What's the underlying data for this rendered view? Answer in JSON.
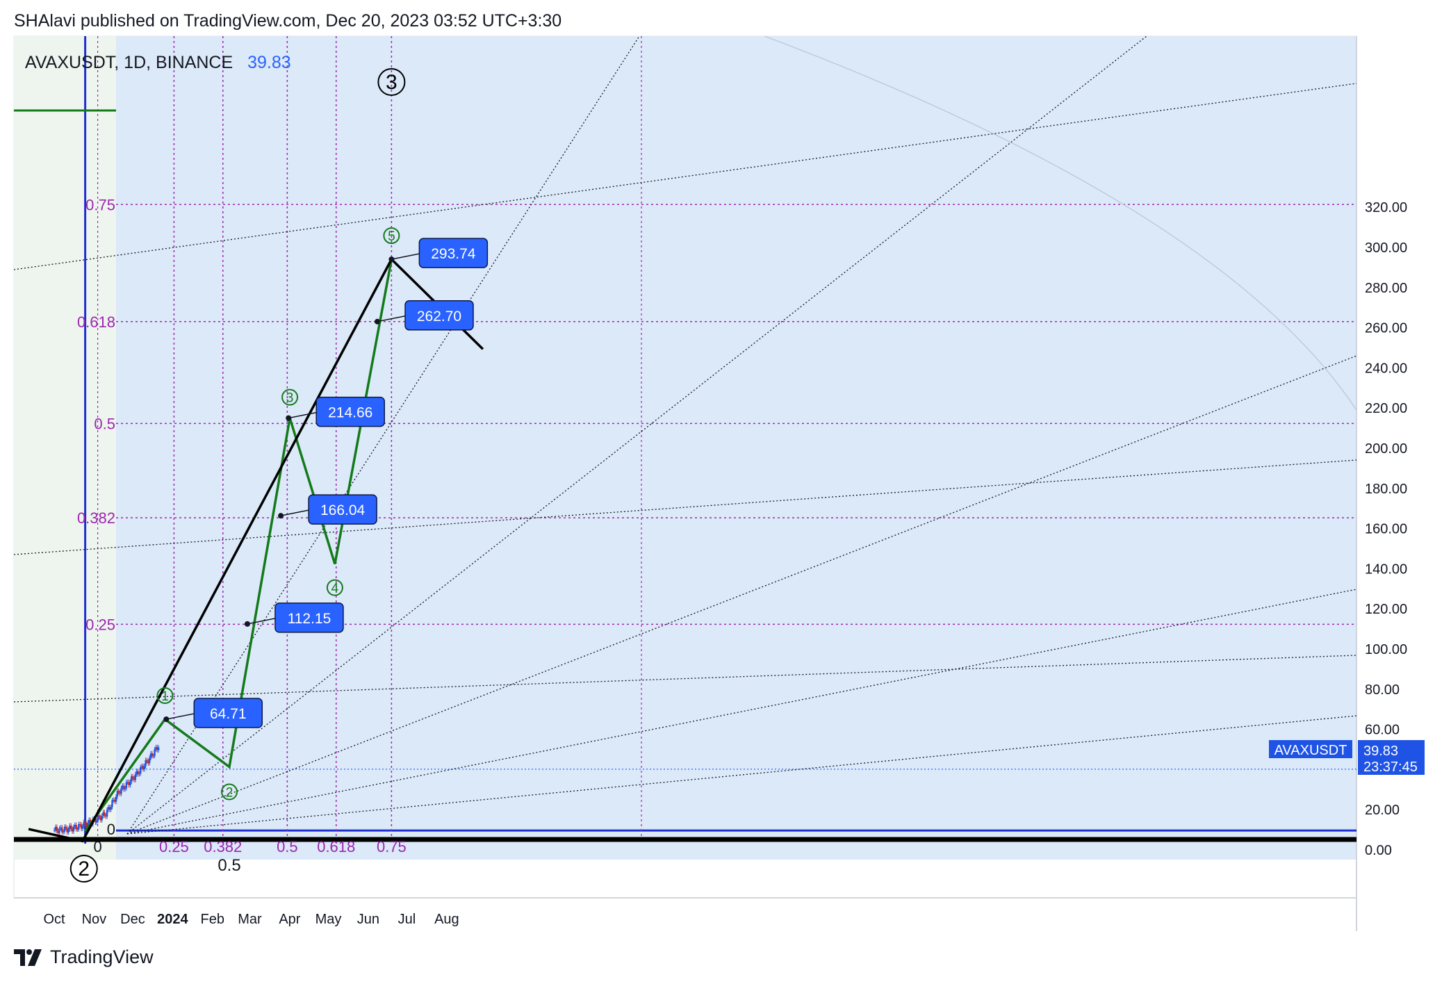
{
  "header": {
    "publish_line": "SHAlavi published on TradingView.com, Dec 20, 2023 03:52 UTC+3:30"
  },
  "symbol": {
    "name": "AVAXUSDT, 1D, BINANCE",
    "last": "39.83"
  },
  "footer": {
    "brand": "TradingView"
  },
  "colors": {
    "pane_bg": "#dce9f8",
    "green_wave": "#137a1a",
    "black_line": "#000000",
    "fib_purple": "#9c27b0",
    "label_blue": "#2962ff",
    "price_tag_bg": "#1e53e5"
  },
  "price_tag": {
    "symbol": "AVAXUSDT",
    "price": "39.83",
    "countdown": "23:37:45"
  },
  "chart_data": {
    "type": "line",
    "title": "AVAXUSDT, 1D, BINANCE",
    "x_axis_labels": [
      "Oct",
      "Nov",
      "Dec",
      "2024",
      "Feb",
      "Mar",
      "Apr",
      "May",
      "Jun",
      "Jul",
      "Aug"
    ],
    "y_axis_labels": [
      "320.00",
      "300.00",
      "280.00",
      "260.00",
      "240.00",
      "220.00",
      "200.00",
      "180.00",
      "160.00",
      "140.00",
      "120.00",
      "100.00",
      "80.00",
      "60.00",
      "20.00",
      "0.00"
    ],
    "ylim": [
      0,
      325
    ],
    "fib_price_levels": [
      {
        "label": "0.75",
        "price": 321
      },
      {
        "label": "0.618",
        "price": 262.7
      },
      {
        "label": "0.5",
        "price": 212
      },
      {
        "label": "0.382",
        "price": 165
      },
      {
        "label": "0.25",
        "price": 112
      },
      {
        "label": "0",
        "price": 10
      }
    ],
    "fib_time_levels": [
      {
        "label": "0",
        "date": "2023-10-24"
      },
      {
        "label": "0.25",
        "date": "2024-01-01"
      },
      {
        "label": "0.382",
        "date": "2024-02-08"
      },
      {
        "label": "0.5",
        "date": "2024-03-29"
      },
      {
        "label": "0.618",
        "date": "2024-05-06"
      },
      {
        "label": "0.75",
        "date": "2024-06-18"
      }
    ],
    "time_midpoint_label": "0.5",
    "series": [
      {
        "points": [
          {
            "date": "2023-10-24",
            "price": 9
          },
          {
            "date": "2023-12-25",
            "price": 64.71
          },
          {
            "date": "2024-02-13",
            "price": 41
          },
          {
            "date": "2024-03-31",
            "price": 214.66
          },
          {
            "date": "2024-05-05",
            "price": 142
          },
          {
            "date": "2024-06-18",
            "price": 293.74
          }
        ]
      },
      {
        "points": [
          {
            "date": "2023-09-10",
            "price": 10
          },
          {
            "date": "2023-10-22",
            "price": 4
          },
          {
            "date": "2024-06-18",
            "price": 293.74
          },
          {
            "date": "2024-08-28",
            "price": 249
          }
        ]
      }
    ],
    "wave_labels": [
      "1",
      "2",
      "3",
      "4",
      "5"
    ],
    "big_wave_labels": [
      "2",
      "3"
    ],
    "price_callouts": [
      "64.71",
      "112.15",
      "166.04",
      "214.66",
      "262.70",
      "293.74"
    ],
    "current_price": 39.83
  }
}
